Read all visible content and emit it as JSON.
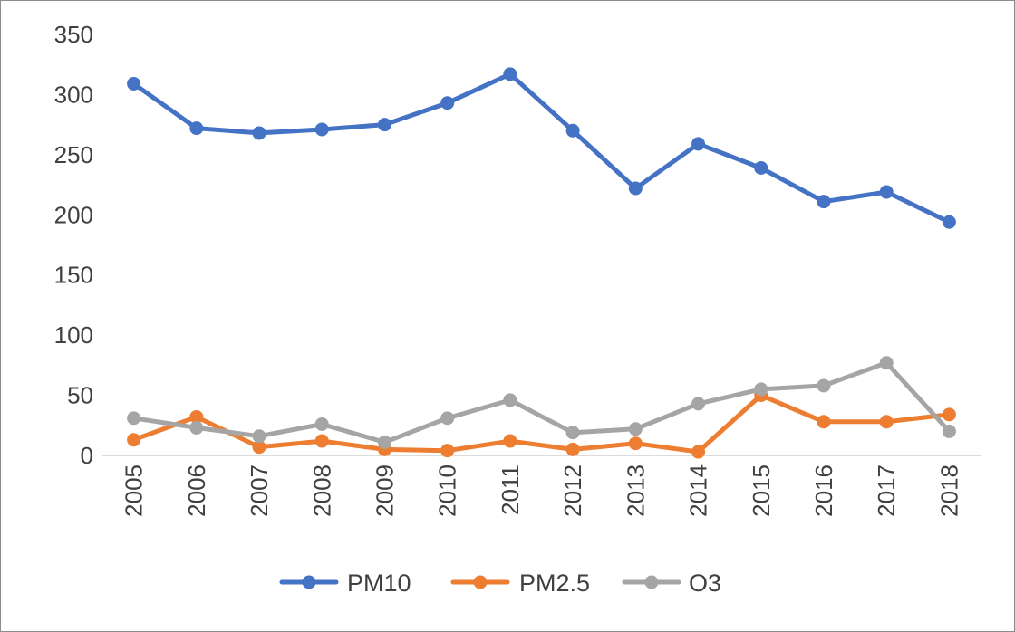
{
  "chart_data": {
    "type": "line",
    "title": "",
    "xlabel": "",
    "ylabel": "",
    "x": [
      "2005",
      "2006",
      "2007",
      "2008",
      "2009",
      "2010",
      "2011",
      "2012",
      "2013",
      "2014",
      "2015",
      "2016",
      "2017",
      "2018"
    ],
    "ylim": [
      0,
      350
    ],
    "yticks": [
      "0",
      "50",
      "100",
      "150",
      "200",
      "250",
      "300",
      "350"
    ],
    "grid": false,
    "legend_position": "bottom",
    "series": [
      {
        "name": "PM10",
        "color": "#4472C4",
        "values": [
          309,
          272,
          268,
          271,
          275,
          293,
          317,
          270,
          222,
          259,
          239,
          211,
          219,
          194
        ]
      },
      {
        "name": "PM2.5",
        "color": "#ED7D31",
        "values": [
          13,
          32,
          7,
          12,
          5,
          4,
          12,
          5,
          10,
          3,
          50,
          28,
          28,
          34
        ]
      },
      {
        "name": "O3",
        "color": "#A5A5A5",
        "values": [
          31,
          23,
          16,
          26,
          11,
          31,
          46,
          19,
          22,
          43,
          55,
          58,
          77,
          20
        ]
      }
    ]
  }
}
